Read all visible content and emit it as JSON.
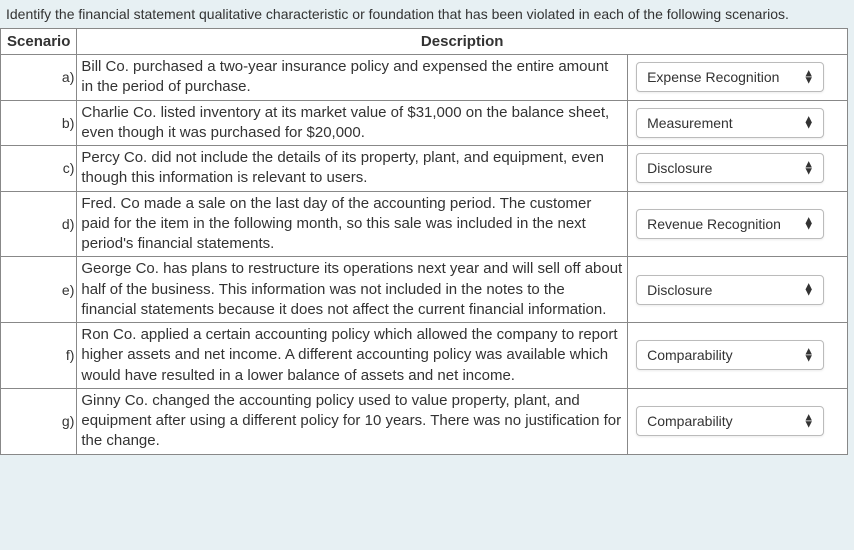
{
  "instruction": "Identify the financial statement qualitative characteristic or foundation that has been violated in each of the following scenarios.",
  "headers": {
    "scenario": "Scenario",
    "description": "Description"
  },
  "rows": [
    {
      "letter": "a)",
      "desc": "Bill Co. purchased a two-year insurance policy and expensed the entire amount in the period of purchase.",
      "selected": "Expense Recognition"
    },
    {
      "letter": "b)",
      "desc": "Charlie Co. listed inventory at its market value of $31,000 on the balance sheet, even though it was purchased for $20,000.",
      "selected": "Measurement"
    },
    {
      "letter": "c)",
      "desc": "Percy Co. did not include the details of its property, plant, and equipment, even though this information is relevant to users.",
      "selected": "Disclosure"
    },
    {
      "letter": "d)",
      "desc": "Fred. Co made a sale on the last day of the accounting period. The customer paid for the item in the following month, so this sale was included in the next period's financial statements.",
      "selected": "Revenue Recognition"
    },
    {
      "letter": "e)",
      "desc": "George Co. has plans to restructure its operations next year and will sell off about half of the business. This information was not included in the notes to the financial statements because it does not affect the current financial information.",
      "selected": "Disclosure"
    },
    {
      "letter": "f)",
      "desc": "Ron Co. applied a certain accounting policy which allowed the company to report higher assets and net income. A different accounting policy was available which would have resulted in a lower balance of assets and net income.",
      "selected": "Comparability"
    },
    {
      "letter": "g)",
      "desc": "Ginny Co. changed the accounting policy used to value property, plant, and equipment after using a different policy for 10 years. There was no justification for the change.",
      "selected": "Comparability"
    }
  ]
}
